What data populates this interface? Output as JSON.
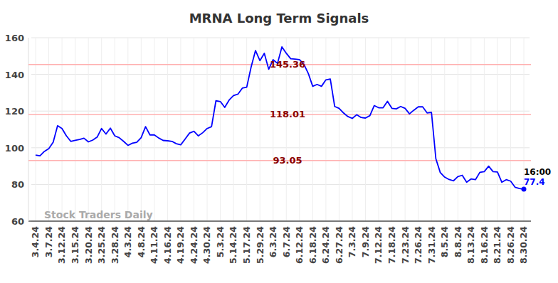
{
  "chart_data": {
    "type": "line",
    "title": "MRNA Long Term Signals",
    "categories": [
      "3.4.24",
      null,
      null,
      "3.7.24",
      null,
      null,
      "3.12.24",
      null,
      null,
      "3.15.24",
      null,
      null,
      "3.20.24",
      null,
      null,
      "3.25.24",
      null,
      null,
      "3.28.24",
      null,
      null,
      "4.3.24",
      null,
      null,
      "4.8.24",
      null,
      null,
      "4.11.24",
      null,
      null,
      "4.16.24",
      null,
      null,
      "4.19.24",
      null,
      null,
      "4.24.24",
      null,
      null,
      "4.30.24",
      null,
      null,
      "5.3.24",
      null,
      null,
      "5.14.24",
      null,
      null,
      "5.17.24",
      null,
      null,
      "5.29.24",
      null,
      null,
      "6.3.24",
      null,
      null,
      "6.7.24",
      null,
      null,
      "6.12.24",
      null,
      null,
      "6.18.24",
      null,
      null,
      "6.24.24",
      null,
      null,
      "6.27.24",
      null,
      null,
      "7.3.24",
      null,
      null,
      "7.9.24",
      null,
      null,
      "7.12.24",
      null,
      null,
      "7.18.24",
      null,
      null,
      "7.23.24",
      null,
      null,
      "7.26.24",
      null,
      null,
      "7.31.24",
      null,
      null,
      "8.5.24",
      null,
      null,
      "8.8.24",
      null,
      null,
      "8.13.24",
      null,
      null,
      "8.16.24",
      null,
      null,
      "8.21.24",
      null,
      null,
      "8.26.24",
      null,
      null,
      "8.30.24"
    ],
    "values": [
      96.0,
      95.6,
      98.0,
      99.5,
      103.0,
      112.0,
      110.5,
      106.5,
      103.5,
      104.0,
      104.5,
      105.2,
      103.2,
      104.2,
      105.8,
      110.5,
      107.5,
      110.7,
      106.5,
      105.5,
      103.5,
      101.3,
      102.5,
      103.0,
      105.5,
      111.5,
      107.0,
      107.0,
      105.3,
      104.0,
      103.8,
      103.5,
      102.2,
      101.6,
      104.8,
      108.0,
      109.0,
      106.5,
      108.2,
      110.5,
      111.5,
      125.6,
      125.2,
      122.0,
      126.0,
      128.5,
      129.2,
      132.5,
      133.0,
      144.0,
      153.0,
      147.5,
      151.5,
      142.8,
      148.0,
      146.0,
      155.0,
      151.5,
      148.5,
      148.3,
      148.0,
      145.5,
      140.5,
      133.5,
      134.5,
      133.5,
      137.0,
      137.5,
      122.5,
      121.5,
      119.0,
      117.0,
      116.0,
      118.0,
      116.5,
      116.2,
      117.5,
      123.0,
      121.8,
      121.8,
      125.3,
      121.5,
      121.2,
      122.5,
      121.5,
      118.5,
      120.5,
      122.3,
      122.3,
      119.0,
      119.3,
      94.0,
      86.5,
      84.0,
      82.7,
      82.0,
      84.3,
      85.0,
      81.2,
      83.0,
      82.6,
      86.6,
      87.0,
      90.0,
      87.0,
      86.8,
      81.2,
      82.6,
      81.8,
      78.5,
      77.8,
      77.4
    ],
    "color": "#0000ff",
    "ylim": [
      60,
      160
    ],
    "yticks": [
      60,
      80,
      100,
      120,
      140,
      160
    ],
    "grid": true,
    "reference_lines": [
      145.36,
      118.01,
      93.05
    ],
    "watermark": "Stock Traders Daily",
    "last_label": "16:00"
  }
}
